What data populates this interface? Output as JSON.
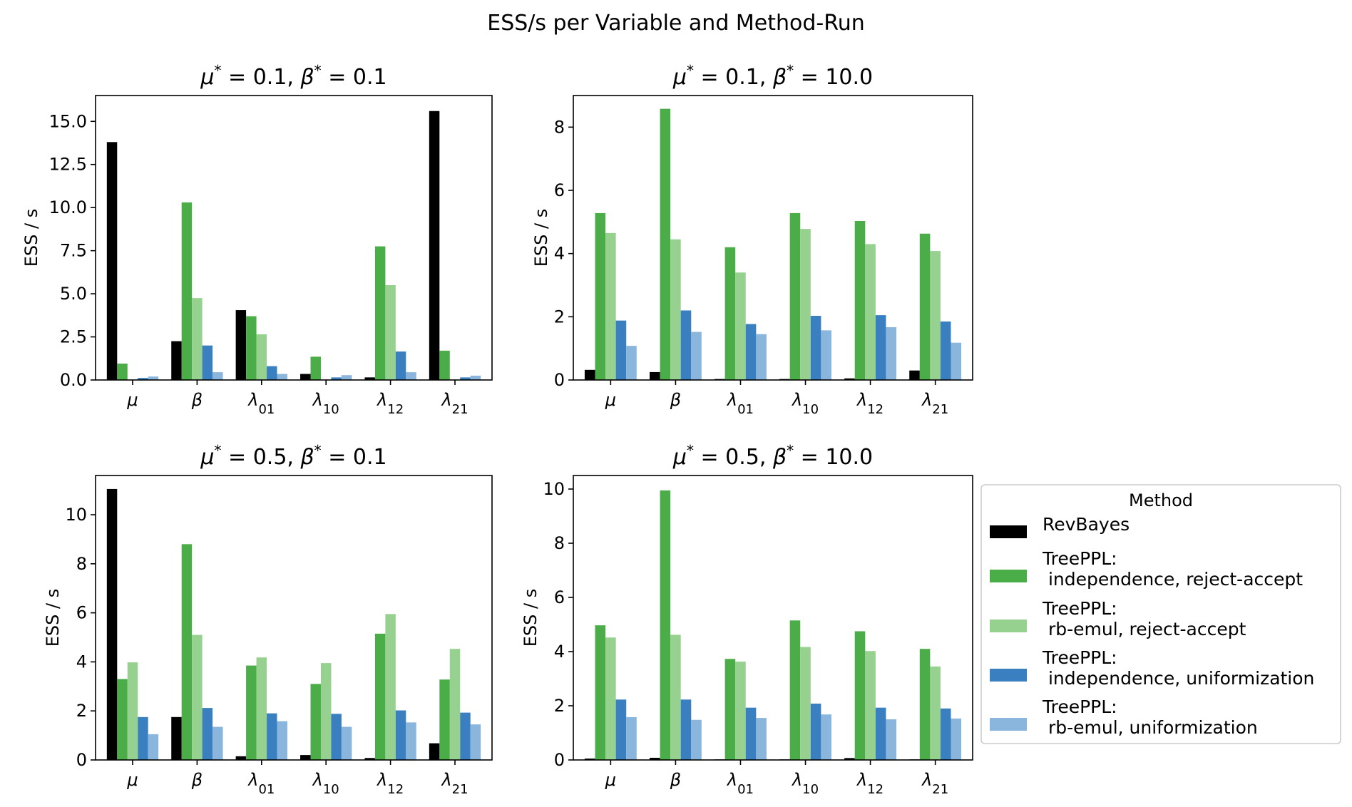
{
  "figure": {
    "title": "ESS/s per Variable and Method-Run"
  },
  "colors": {
    "RevBayes": "#000000",
    "indep_ra": "#4aad47",
    "rbemul_ra": "#96d18f",
    "indep_unif": "#3a80c0",
    "rbemul_unif": "#8ab5dc"
  },
  "legend": {
    "title": "Method",
    "entries": [
      {
        "key": "RevBayes",
        "lines": [
          "RevBayes"
        ]
      },
      {
        "key": "indep_ra",
        "lines": [
          "TreePPL:",
          " independence, reject-accept"
        ]
      },
      {
        "key": "rbemul_ra",
        "lines": [
          "TreePPL:",
          " rb-emul, reject-accept"
        ]
      },
      {
        "key": "indep_unif",
        "lines": [
          "TreePPL:",
          " independence, uniformization"
        ]
      },
      {
        "key": "rbemul_unif",
        "lines": [
          "TreePPL:",
          " rb-emul, uniformization"
        ]
      }
    ]
  },
  "chart_data": [
    {
      "type": "bar",
      "title": "μ* = 0.1, β* = 0.1",
      "ylabel": "ESS / s",
      "categories": [
        "μ",
        "β",
        "λ01",
        "λ10",
        "λ12",
        "λ21"
      ],
      "ylim": [
        0,
        16.5
      ],
      "yticks": [
        0.0,
        2.5,
        5.0,
        7.5,
        10.0,
        12.5,
        15.0
      ],
      "ytick_labels": [
        "0.0",
        "2.5",
        "5.0",
        "7.5",
        "10.0",
        "12.5",
        "15.0"
      ],
      "series": [
        {
          "name": "RevBayes",
          "values": [
            13.8,
            2.25,
            4.05,
            0.35,
            0.15,
            15.6
          ]
        },
        {
          "name": "TreePPL: independence, reject-accept",
          "values": [
            0.95,
            10.3,
            3.7,
            1.35,
            7.75,
            1.7
          ]
        },
        {
          "name": "TreePPL: rb-emul, reject-accept",
          "values": [
            0.02,
            4.75,
            2.65,
            0.02,
            5.5,
            0.02
          ]
        },
        {
          "name": "TreePPL: independence, uniformization",
          "values": [
            0.12,
            2.0,
            0.8,
            0.15,
            1.65,
            0.15
          ]
        },
        {
          "name": "TreePPL: rb-emul, uniformization",
          "values": [
            0.2,
            0.45,
            0.35,
            0.28,
            0.45,
            0.25
          ]
        }
      ]
    },
    {
      "type": "bar",
      "title": "μ* = 0.1, β* = 10.0",
      "ylabel": "ESS / s",
      "categories": [
        "μ",
        "β",
        "λ01",
        "λ10",
        "λ12",
        "λ21"
      ],
      "ylim": [
        0,
        9.0
      ],
      "yticks": [
        0,
        2,
        4,
        6,
        8
      ],
      "ytick_labels": [
        "0",
        "2",
        "4",
        "6",
        "8"
      ],
      "series": [
        {
          "name": "RevBayes",
          "values": [
            0.32,
            0.25,
            0.03,
            0.03,
            0.05,
            0.3
          ]
        },
        {
          "name": "TreePPL: independence, reject-accept",
          "values": [
            5.28,
            8.58,
            4.2,
            5.28,
            5.03,
            4.63
          ]
        },
        {
          "name": "TreePPL: rb-emul, reject-accept",
          "values": [
            4.65,
            4.45,
            3.4,
            4.78,
            4.3,
            4.08
          ]
        },
        {
          "name": "TreePPL: independence, uniformization",
          "values": [
            1.88,
            2.2,
            1.77,
            2.03,
            2.05,
            1.85
          ]
        },
        {
          "name": "TreePPL: rb-emul, uniformization",
          "values": [
            1.08,
            1.52,
            1.45,
            1.57,
            1.67,
            1.18
          ]
        }
      ]
    },
    {
      "type": "bar",
      "title": "μ* = 0.5, β* = 0.1",
      "ylabel": "ESS / s",
      "categories": [
        "μ",
        "β",
        "λ01",
        "λ10",
        "λ12",
        "λ21"
      ],
      "ylim": [
        0,
        11.6
      ],
      "yticks": [
        0,
        2,
        4,
        6,
        8,
        10
      ],
      "ytick_labels": [
        "0",
        "2",
        "4",
        "6",
        "8",
        "10"
      ],
      "series": [
        {
          "name": "RevBayes",
          "values": [
            11.05,
            1.75,
            0.15,
            0.2,
            0.08,
            0.68
          ]
        },
        {
          "name": "TreePPL: independence, reject-accept",
          "values": [
            3.3,
            8.8,
            3.85,
            3.1,
            5.15,
            3.28
          ]
        },
        {
          "name": "TreePPL: rb-emul, reject-accept",
          "values": [
            3.98,
            5.1,
            4.18,
            3.95,
            5.95,
            4.53
          ]
        },
        {
          "name": "TreePPL: independence, uniformization",
          "values": [
            1.75,
            2.12,
            1.9,
            1.88,
            2.02,
            1.93
          ]
        },
        {
          "name": "TreePPL: rb-emul, uniformization",
          "values": [
            1.05,
            1.35,
            1.58,
            1.35,
            1.53,
            1.45
          ]
        }
      ]
    },
    {
      "type": "bar",
      "title": "μ* = 0.5, β* = 10.0",
      "ylabel": "ESS / s",
      "categories": [
        "μ",
        "β",
        "λ01",
        "λ10",
        "λ12",
        "λ21"
      ],
      "ylim": [
        0,
        10.5
      ],
      "yticks": [
        0,
        2,
        4,
        6,
        8,
        10
      ],
      "ytick_labels": [
        "0",
        "2",
        "4",
        "6",
        "8",
        "10"
      ],
      "series": [
        {
          "name": "RevBayes",
          "values": [
            0.05,
            0.08,
            0.02,
            0.02,
            0.07,
            0.02
          ]
        },
        {
          "name": "TreePPL: independence, reject-accept",
          "values": [
            4.97,
            9.95,
            3.73,
            5.15,
            4.75,
            4.1
          ]
        },
        {
          "name": "TreePPL: rb-emul, reject-accept",
          "values": [
            4.52,
            4.62,
            3.63,
            4.17,
            4.02,
            3.45
          ]
        },
        {
          "name": "TreePPL: independence, uniformization",
          "values": [
            2.23,
            2.23,
            1.93,
            2.08,
            1.93,
            1.9
          ]
        },
        {
          "name": "TreePPL: rb-emul, uniformization",
          "values": [
            1.58,
            1.48,
            1.55,
            1.68,
            1.5,
            1.53
          ]
        }
      ]
    }
  ]
}
